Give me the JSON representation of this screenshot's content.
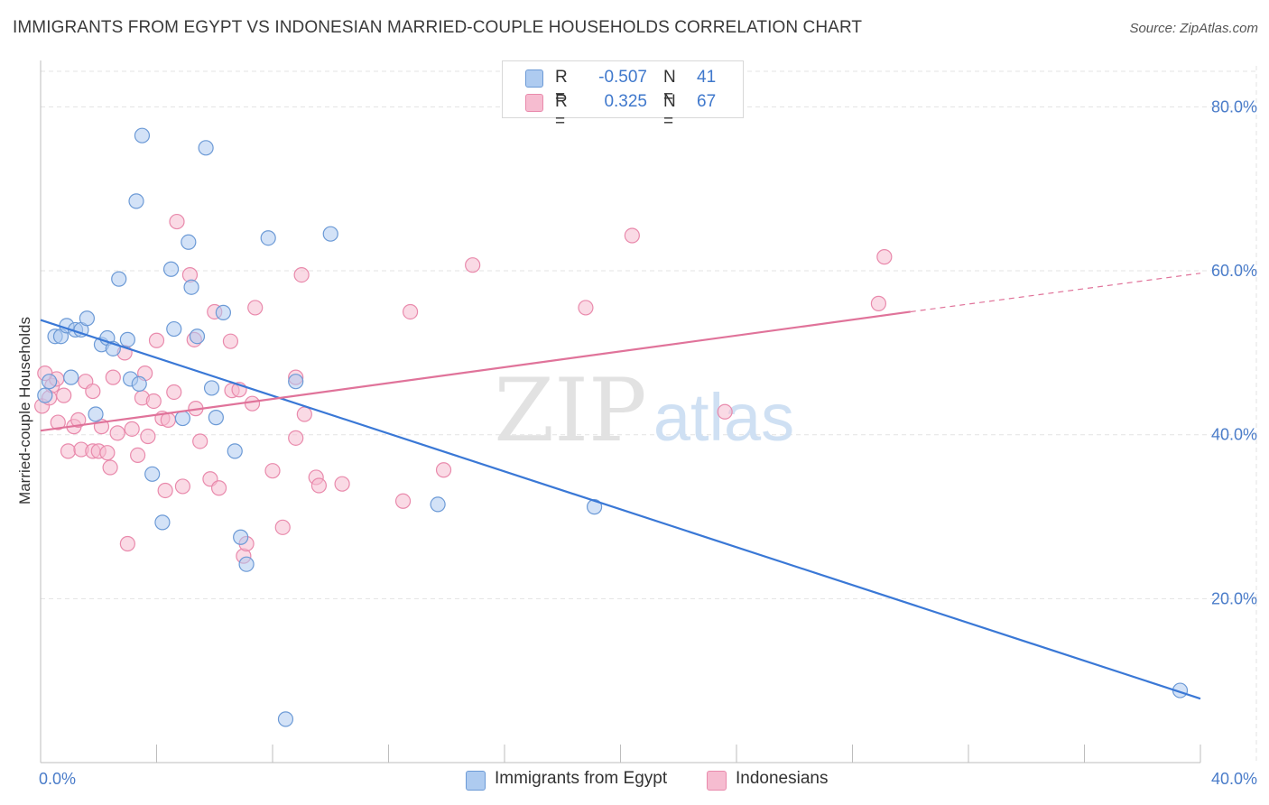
{
  "title": "IMMIGRANTS FROM EGYPT VS INDONESIAN MARRIED-COUPLE HOUSEHOLDS CORRELATION CHART",
  "source": "Source: ZipAtlas.com",
  "watermark": {
    "zip": "ZIP",
    "atlas": "atlas"
  },
  "legend": {
    "rows": [
      {
        "r_label": "R =",
        "r_value": "-0.507",
        "n_label": "N =",
        "n_value": "41"
      },
      {
        "r_label": "R =",
        "r_value": "0.325",
        "n_label": "N =",
        "n_value": "67"
      }
    ]
  },
  "bottom_legend": {
    "egypt": "Immigrants from Egypt",
    "indonesians": "Indonesians"
  },
  "colors": {
    "egypt_fill": "#aecbf0",
    "egypt_stroke": "#6c9ad6",
    "egypt_line": "#3a78d6",
    "indo_fill": "#f6bcd0",
    "indo_stroke": "#e98aac",
    "indo_line": "#e0739a",
    "grid": "#e3e3e3",
    "axis_label": "#4a7cc9"
  },
  "chart_data": {
    "type": "scatter",
    "title": "IMMIGRANTS FROM EGYPT VS INDONESIAN MARRIED-COUPLE HOUSEHOLDS CORRELATION CHART",
    "xlabel": "",
    "ylabel": "Married-couple Households",
    "xlim": [
      0,
      40
    ],
    "ylim": [
      0,
      85
    ],
    "x_tick_labels": [
      "0.0%",
      "40.0%"
    ],
    "y_ticks": [
      20,
      40,
      60,
      80
    ],
    "y_tick_labels": [
      "20.0%",
      "40.0%",
      "60.0%",
      "80.0%"
    ],
    "grid": true,
    "legend_position": "top-center",
    "series": [
      {
        "name": "Immigrants from Egypt",
        "R": -0.507,
        "N": 41,
        "trend": {
          "x0": 0,
          "y0": 54.0,
          "x1": 40,
          "y1": 7.8
        },
        "points": [
          [
            0.15,
            44.8
          ],
          [
            0.3,
            46.5
          ],
          [
            0.5,
            52.0
          ],
          [
            0.7,
            52.0
          ],
          [
            0.9,
            53.3
          ],
          [
            1.05,
            47.0
          ],
          [
            1.2,
            52.8
          ],
          [
            1.4,
            52.8
          ],
          [
            1.6,
            54.2
          ],
          [
            1.9,
            42.5
          ],
          [
            2.1,
            51.0
          ],
          [
            2.3,
            51.8
          ],
          [
            2.5,
            50.5
          ],
          [
            2.7,
            59.0
          ],
          [
            3.0,
            51.6
          ],
          [
            3.1,
            46.8
          ],
          [
            3.3,
            68.5
          ],
          [
            3.4,
            46.2
          ],
          [
            3.5,
            76.5
          ],
          [
            3.85,
            35.2
          ],
          [
            4.2,
            29.3
          ],
          [
            4.5,
            60.2
          ],
          [
            4.6,
            52.9
          ],
          [
            4.9,
            42.0
          ],
          [
            5.1,
            63.5
          ],
          [
            5.2,
            58.0
          ],
          [
            5.4,
            52.0
          ],
          [
            5.7,
            75.0
          ],
          [
            5.9,
            45.7
          ],
          [
            6.05,
            42.1
          ],
          [
            6.3,
            54.9
          ],
          [
            6.7,
            38.0
          ],
          [
            6.9,
            27.5
          ],
          [
            7.1,
            24.2
          ],
          [
            7.85,
            64.0
          ],
          [
            8.45,
            5.3
          ],
          [
            8.8,
            46.5
          ],
          [
            10.0,
            64.5
          ],
          [
            13.7,
            31.5
          ],
          [
            19.1,
            31.2
          ],
          [
            39.3,
            8.8
          ]
        ]
      },
      {
        "name": "Indonesians",
        "R": 0.325,
        "N": 67,
        "trend": {
          "x0": 0,
          "y0": 40.5,
          "x1": 30,
          "y1": 55.0,
          "dash_to_x": 40,
          "dash_to_y": 59.7
        },
        "points": [
          [
            0.05,
            43.5
          ],
          [
            0.3,
            44.5
          ],
          [
            0.4,
            46.0
          ],
          [
            0.55,
            46.8
          ],
          [
            0.8,
            44.8
          ],
          [
            0.95,
            38.0
          ],
          [
            1.15,
            41.0
          ],
          [
            1.3,
            41.8
          ],
          [
            1.4,
            38.2
          ],
          [
            1.55,
            46.5
          ],
          [
            1.8,
            45.3
          ],
          [
            1.8,
            38.0
          ],
          [
            2.0,
            38.0
          ],
          [
            2.1,
            41.0
          ],
          [
            2.3,
            37.8
          ],
          [
            2.4,
            36.0
          ],
          [
            2.5,
            47.0
          ],
          [
            2.65,
            40.2
          ],
          [
            2.9,
            50.0
          ],
          [
            3.0,
            26.7
          ],
          [
            3.15,
            40.7
          ],
          [
            3.35,
            37.5
          ],
          [
            3.5,
            44.5
          ],
          [
            3.6,
            47.5
          ],
          [
            3.7,
            39.8
          ],
          [
            3.9,
            44.1
          ],
          [
            4.0,
            51.5
          ],
          [
            4.2,
            42.0
          ],
          [
            4.3,
            33.2
          ],
          [
            4.4,
            41.8
          ],
          [
            4.6,
            45.2
          ],
          [
            4.7,
            66.0
          ],
          [
            4.9,
            33.7
          ],
          [
            5.15,
            59.5
          ],
          [
            5.3,
            51.6
          ],
          [
            5.35,
            43.2
          ],
          [
            5.5,
            39.2
          ],
          [
            5.85,
            34.6
          ],
          [
            6.0,
            55.0
          ],
          [
            6.15,
            33.5
          ],
          [
            6.55,
            51.4
          ],
          [
            6.6,
            45.4
          ],
          [
            6.85,
            45.5
          ],
          [
            7.0,
            25.2
          ],
          [
            7.1,
            26.7
          ],
          [
            7.3,
            43.8
          ],
          [
            7.4,
            55.5
          ],
          [
            8.0,
            35.6
          ],
          [
            8.35,
            28.7
          ],
          [
            8.8,
            39.6
          ],
          [
            8.8,
            47.0
          ],
          [
            9.0,
            59.5
          ],
          [
            9.1,
            42.5
          ],
          [
            9.5,
            34.8
          ],
          [
            9.6,
            33.8
          ],
          [
            10.4,
            34.0
          ],
          [
            12.5,
            31.9
          ],
          [
            12.75,
            55.0
          ],
          [
            13.9,
            35.7
          ],
          [
            14.9,
            60.7
          ],
          [
            18.8,
            55.5
          ],
          [
            20.4,
            64.3
          ],
          [
            23.6,
            42.8
          ],
          [
            28.9,
            56.0
          ],
          [
            29.1,
            61.7
          ],
          [
            0.15,
            47.5
          ],
          [
            0.6,
            41.5
          ]
        ]
      }
    ]
  }
}
